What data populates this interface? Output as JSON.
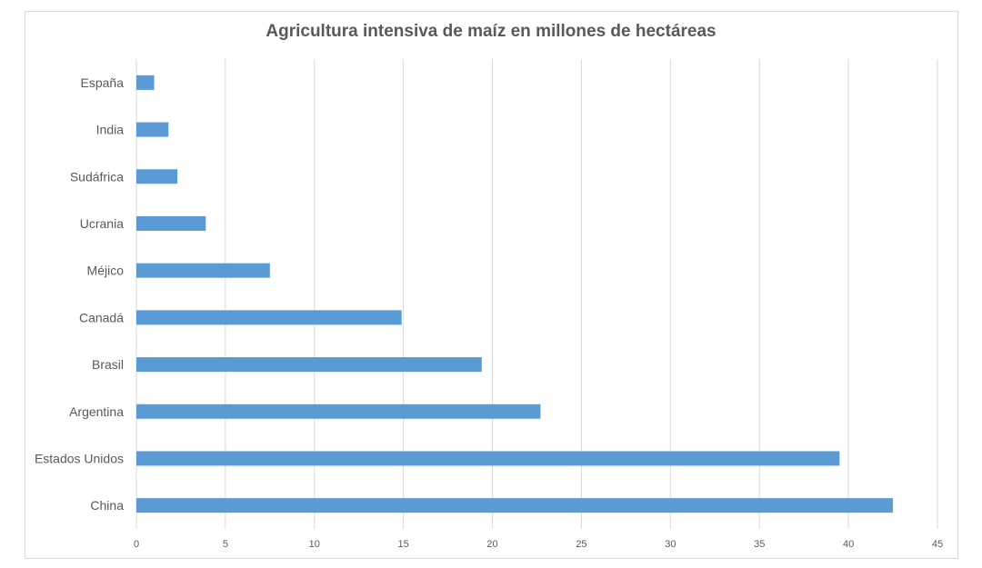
{
  "chart_data": {
    "type": "bar",
    "orientation": "horizontal",
    "title": "Agricultura  intensiva de maíz en millones de hectáreas",
    "categories": [
      "España",
      "India",
      "Sudáfrica",
      "Ucrania",
      "Méjico",
      "Canadá",
      "Brasil",
      "Argentina",
      "Estados Unidos",
      "China"
    ],
    "values": [
      1.0,
      1.8,
      2.3,
      3.9,
      7.5,
      14.9,
      19.4,
      22.7,
      39.5,
      42.5
    ],
    "xlim": [
      0,
      45
    ],
    "xticks": [
      "0",
      "5",
      "10",
      "15",
      "20",
      "25",
      "30",
      "35",
      "40",
      "45"
    ],
    "xlabel": "",
    "ylabel": "",
    "grid": true,
    "legend": "none",
    "bar_color": "#5b9bd5"
  }
}
